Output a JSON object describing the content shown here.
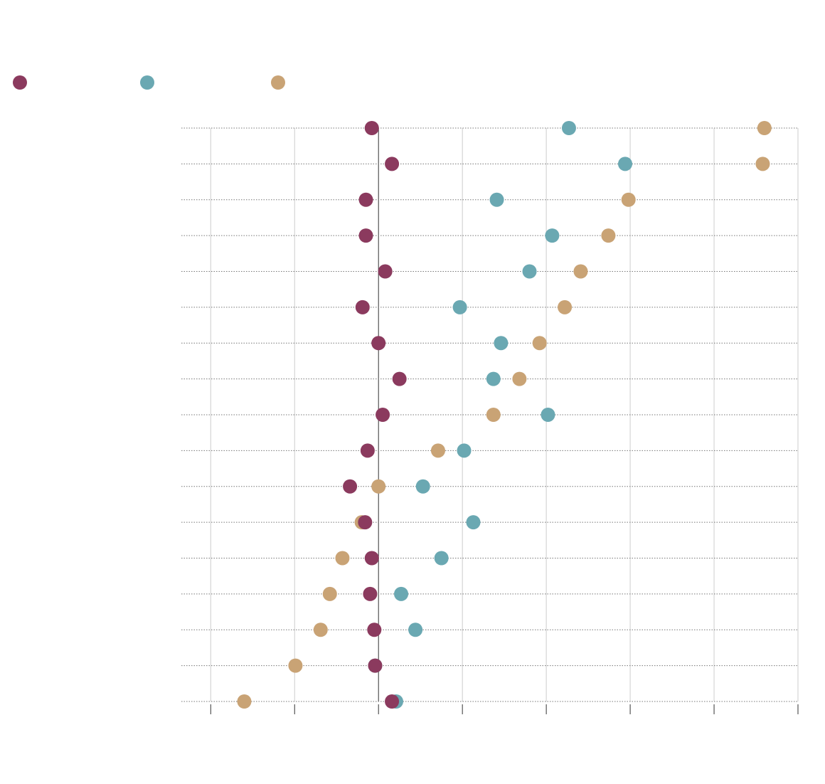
{
  "chart_data": {
    "type": "dot",
    "categories": [
      null,
      null,
      null,
      null,
      null,
      null,
      null,
      null,
      null,
      null,
      null,
      null,
      null,
      null,
      null,
      null,
      null
    ],
    "series": [
      {
        "color": "#8b3a5e",
        "values": [
          -0.08,
          0.16,
          -0.15,
          -0.15,
          0.08,
          -0.19,
          0,
          0.25,
          0.05,
          -0.13,
          -0.34,
          -0.16,
          -0.08,
          -0.1,
          -0.05,
          -0.04,
          0.16
        ]
      },
      {
        "color": "#6aa8b2",
        "values": [
          2.27,
          2.94,
          1.41,
          2.07,
          1.8,
          0.97,
          1.46,
          1.37,
          2.02,
          1.02,
          0.53,
          1.13,
          0.75,
          0.27,
          0.44,
          -0.04,
          0.21
        ]
      },
      {
        "color": "#c9a375",
        "values": [
          4.6,
          4.58,
          2.98,
          2.74,
          2.41,
          2.22,
          1.92,
          1.68,
          1.37,
          0.71,
          0,
          -0.2,
          -0.43,
          -0.58,
          -0.69,
          -0.99,
          -1.6
        ]
      }
    ],
    "xlim": [
      -2.35,
      5
    ],
    "xticks": [
      -2,
      -1,
      0,
      1,
      2,
      3,
      4,
      5
    ],
    "grid": true
  }
}
